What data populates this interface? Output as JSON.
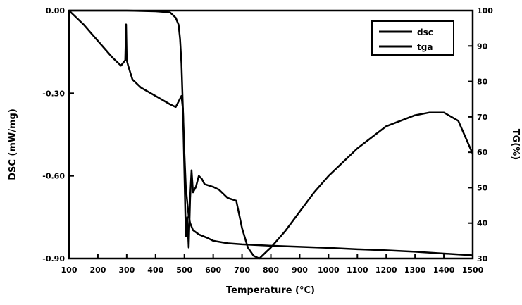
{
  "chart_data": {
    "type": "line",
    "title": "",
    "xlabel": "Temperature (°C)",
    "ylabel_left": "DSC (mW/mg)",
    "ylabel_right": "TG(%)",
    "xlim": [
      100,
      1500
    ],
    "ylim_left": [
      -0.9,
      0.0
    ],
    "ylim_right": [
      30,
      100
    ],
    "x_ticks": [
      "100",
      "200",
      "300",
      "400",
      "500",
      "600",
      "700",
      "800",
      "900",
      "1000",
      "1100",
      "1200",
      "1300",
      "1400",
      "1500"
    ],
    "y_left_ticks": [
      "0.00",
      "-0.30",
      "-0.60",
      "-0.90"
    ],
    "y_right_ticks": [
      "100",
      "90",
      "80",
      "70",
      "60",
      "50",
      "40",
      "30"
    ],
    "legend": {
      "position": "top-right",
      "entries": [
        "dsc",
        "tga"
      ]
    },
    "grid": false,
    "series": [
      {
        "name": "dsc",
        "axis": "left",
        "color": "#000000",
        "x": [
          100,
          150,
          200,
          250,
          280,
          295,
          298,
          300,
          305,
          320,
          350,
          400,
          450,
          470,
          480,
          490,
          495,
          500,
          505,
          510,
          515,
          520,
          525,
          530,
          540,
          550,
          560,
          570,
          600,
          620,
          650,
          680,
          700,
          720,
          740,
          760,
          780,
          800,
          850,
          900,
          950,
          1000,
          1100,
          1200,
          1300,
          1350,
          1400,
          1450,
          1500
        ],
        "y": [
          0.0,
          -0.05,
          -0.11,
          -0.17,
          -0.2,
          -0.18,
          -0.05,
          -0.18,
          -0.2,
          -0.25,
          -0.28,
          -0.31,
          -0.34,
          -0.35,
          -0.33,
          -0.31,
          -0.36,
          -0.58,
          -0.82,
          -0.75,
          -0.86,
          -0.68,
          -0.58,
          -0.66,
          -0.64,
          -0.6,
          -0.61,
          -0.63,
          -0.64,
          -0.65,
          -0.68,
          -0.69,
          -0.79,
          -0.86,
          -0.89,
          -0.9,
          -0.88,
          -0.86,
          -0.8,
          -0.73,
          -0.66,
          -0.6,
          -0.5,
          -0.42,
          -0.38,
          -0.37,
          -0.37,
          -0.4,
          -0.52
        ]
      },
      {
        "name": "tga",
        "axis": "right",
        "color": "#000000",
        "x": [
          100,
          200,
          300,
          400,
          450,
          470,
          480,
          485,
          490,
          495,
          500,
          505,
          510,
          515,
          520,
          530,
          550,
          580,
          600,
          650,
          700,
          800,
          900,
          1000,
          1100,
          1200,
          1300,
          1400,
          1500
        ],
        "y": [
          100,
          100,
          100,
          99.8,
          99.5,
          98,
          96,
          92,
          85,
          72,
          60,
          50,
          46,
          42,
          40,
          38,
          36.8,
          35.8,
          35,
          34.3,
          34,
          33.6,
          33.3,
          33,
          32.6,
          32.3,
          31.9,
          31.4,
          30.9
        ]
      }
    ]
  }
}
